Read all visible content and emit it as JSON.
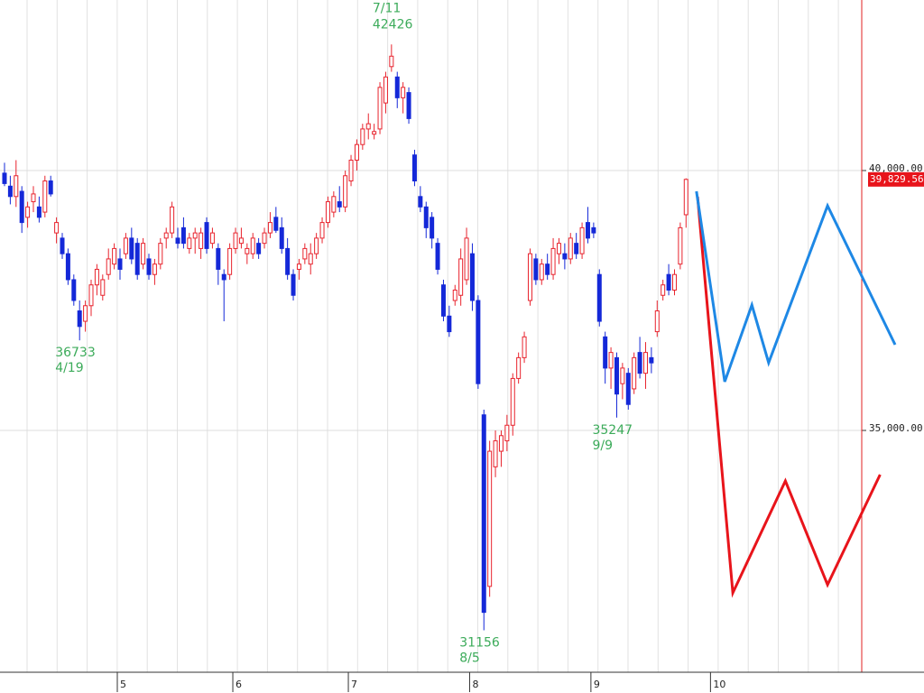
{
  "chart_data": {
    "type": "candlestick",
    "up_color": "#e8232d",
    "down_color": "#1428d8",
    "ohlc": [
      [
        39950,
        40150,
        39700,
        39750
      ],
      [
        39700,
        39900,
        39350,
        39500
      ],
      [
        39500,
        40200,
        39300,
        39900
      ],
      [
        39600,
        39700,
        38800,
        39000
      ],
      [
        39100,
        39400,
        38900,
        39300
      ],
      [
        39400,
        39700,
        39200,
        39550
      ],
      [
        39300,
        39500,
        39000,
        39100
      ],
      [
        39200,
        39900,
        39100,
        39800
      ],
      [
        39800,
        39900,
        39500,
        39550
      ],
      [
        38800,
        39100,
        38600,
        39000
      ],
      [
        38700,
        38800,
        38300,
        38400
      ],
      [
        38400,
        38500,
        37800,
        37900
      ],
      [
        37900,
        38000,
        37400,
        37500
      ],
      [
        37300,
        37500,
        36733,
        37000
      ],
      [
        37100,
        37500,
        36900,
        37400
      ],
      [
        37400,
        37900,
        37200,
        37800
      ],
      [
        37800,
        38200,
        37600,
        38100
      ],
      [
        37600,
        38000,
        37500,
        37900
      ],
      [
        38000,
        38500,
        37900,
        38300
      ],
      [
        38200,
        38600,
        38100,
        38500
      ],
      [
        38300,
        38500,
        37900,
        38100
      ],
      [
        38400,
        38800,
        38300,
        38700
      ],
      [
        38700,
        38900,
        38200,
        38300
      ],
      [
        38600,
        38700,
        37900,
        38000
      ],
      [
        38200,
        38700,
        38100,
        38600
      ],
      [
        38300,
        38400,
        37900,
        38000
      ],
      [
        38000,
        38300,
        37800,
        38200
      ],
      [
        38200,
        38700,
        38100,
        38600
      ],
      [
        38700,
        38900,
        38500,
        38800
      ],
      [
        38800,
        39400,
        38700,
        39300
      ],
      [
        38700,
        38900,
        38500,
        38600
      ],
      [
        38900,
        39100,
        38500,
        38600
      ],
      [
        38500,
        38800,
        38400,
        38700
      ],
      [
        38700,
        38900,
        38400,
        38800
      ],
      [
        38500,
        38900,
        38300,
        38800
      ],
      [
        39000,
        39100,
        38400,
        38500
      ],
      [
        38600,
        38900,
        38500,
        38800
      ],
      [
        38500,
        38600,
        37800,
        38100
      ],
      [
        38000,
        38100,
        37100,
        37900
      ],
      [
        38000,
        38600,
        37900,
        38500
      ],
      [
        38500,
        38900,
        38400,
        38800
      ],
      [
        38600,
        38900,
        38500,
        38700
      ],
      [
        38400,
        38600,
        38200,
        38500
      ],
      [
        38400,
        38800,
        38300,
        38700
      ],
      [
        38600,
        38700,
        38300,
        38400
      ],
      [
        38600,
        38900,
        38500,
        38800
      ],
      [
        38800,
        39200,
        38700,
        39000
      ],
      [
        39100,
        39300,
        38800,
        38850
      ],
      [
        38900,
        39100,
        38400,
        38500
      ],
      [
        38500,
        38700,
        37900,
        38000
      ],
      [
        38000,
        38100,
        37500,
        37600
      ],
      [
        38100,
        38300,
        37900,
        38200
      ],
      [
        38300,
        38600,
        38200,
        38500
      ],
      [
        38200,
        38600,
        38000,
        38400
      ],
      [
        38400,
        38800,
        38300,
        38700
      ],
      [
        38700,
        39100,
        38600,
        39000
      ],
      [
        39000,
        39500,
        38900,
        39400
      ],
      [
        39200,
        39600,
        39100,
        39500
      ],
      [
        39400,
        39700,
        39200,
        39300
      ],
      [
        39300,
        40000,
        39200,
        39900
      ],
      [
        39800,
        40300,
        39700,
        40200
      ],
      [
        40200,
        40600,
        40000,
        40500
      ],
      [
        40500,
        40900,
        40400,
        40800
      ],
      [
        40800,
        41100,
        40600,
        40900
      ],
      [
        40700,
        40900,
        40600,
        40750
      ],
      [
        40800,
        41700,
        40700,
        41600
      ],
      [
        41300,
        41900,
        41100,
        41800
      ],
      [
        42000,
        42426,
        41900,
        42200
      ],
      [
        41800,
        41900,
        41200,
        41400
      ],
      [
        41400,
        41700,
        41100,
        41600
      ],
      [
        41500,
        41600,
        40900,
        41000
      ],
      [
        40300,
        40400,
        39700,
        39800
      ],
      [
        39500,
        39700,
        39200,
        39300
      ],
      [
        39300,
        39400,
        38700,
        38900
      ],
      [
        39100,
        39200,
        38500,
        38700
      ],
      [
        38600,
        38700,
        38000,
        38100
      ],
      [
        37800,
        37900,
        37100,
        37200
      ],
      [
        37200,
        37400,
        36800,
        36900
      ],
      [
        37500,
        37800,
        37400,
        37700
      ],
      [
        37600,
        38500,
        37400,
        38300
      ],
      [
        37900,
        38900,
        37800,
        38700
      ],
      [
        38400,
        38600,
        37300,
        37500
      ],
      [
        37500,
        37600,
        35800,
        35900
      ],
      [
        35300,
        35400,
        31156,
        31500
      ],
      [
        32000,
        34800,
        31800,
        34600
      ],
      [
        34300,
        35000,
        34100,
        34800
      ],
      [
        34600,
        35000,
        34300,
        34900
      ],
      [
        34800,
        35300,
        34600,
        35100
      ],
      [
        35100,
        36100,
        34900,
        36000
      ],
      [
        36000,
        36500,
        35900,
        36400
      ],
      [
        36400,
        36900,
        36300,
        36800
      ],
      [
        37500,
        38500,
        37400,
        38400
      ],
      [
        38300,
        38400,
        37800,
        37900
      ],
      [
        37900,
        38300,
        37800,
        38200
      ],
      [
        38200,
        38400,
        37900,
        38000
      ],
      [
        38000,
        38700,
        37900,
        38500
      ],
      [
        38400,
        38700,
        38200,
        38600
      ],
      [
        38400,
        38600,
        38100,
        38300
      ],
      [
        38300,
        38800,
        38200,
        38700
      ],
      [
        38600,
        38800,
        38300,
        38400
      ],
      [
        38400,
        39000,
        38300,
        38900
      ],
      [
        39000,
        39300,
        38600,
        38700
      ],
      [
        38900,
        39000,
        38700,
        38800
      ],
      [
        38000,
        38100,
        37000,
        37100
      ],
      [
        36800,
        36900,
        35900,
        36200
      ],
      [
        36200,
        36600,
        35800,
        36500
      ],
      [
        36400,
        36500,
        35247,
        35700
      ],
      [
        35900,
        36300,
        35600,
        36200
      ],
      [
        36100,
        36200,
        35400,
        35500
      ],
      [
        35800,
        36500,
        35700,
        36400
      ],
      [
        36500,
        36800,
        36000,
        36100
      ],
      [
        36100,
        36700,
        35800,
        36500
      ],
      [
        36400,
        36600,
        36100,
        36300
      ],
      [
        36900,
        37500,
        36800,
        37300
      ],
      [
        37600,
        37900,
        37500,
        37800
      ],
      [
        38000,
        38200,
        37600,
        37700
      ],
      [
        37700,
        38100,
        37600,
        38000
      ],
      [
        38200,
        39000,
        38100,
        38900
      ],
      [
        39150,
        39850,
        38900,
        39829.56
      ]
    ],
    "lines": [
      {
        "color": "#e8141b",
        "x": [
          120,
          126.1,
          135.2,
          142.5,
          151.6
        ],
        "values": [
          39497,
          31876,
          34028,
          32032,
          34150
        ]
      },
      {
        "color": "#1e88e5",
        "x": [
          119.8,
          124.7,
          129.4,
          132.3,
          142.5,
          154.2
        ],
        "values": [
          39601,
          35938,
          37413,
          36302,
          39323,
          36650
        ]
      }
    ],
    "annotations": [
      {
        "kind": "high",
        "date": "7/11",
        "value": 42426
      },
      {
        "kind": "low",
        "date": "4/19",
        "value": 36733
      },
      {
        "kind": "low",
        "date": "8/5",
        "value": 31156
      },
      {
        "kind": "low",
        "date": "9/9",
        "value": 35247
      }
    ],
    "last_price": {
      "value": 39829.56,
      "label": "39,829.56"
    },
    "xlim": [
      -0.78,
      159.2
    ],
    "xticks": [
      {
        "value": 20,
        "label": "5"
      },
      {
        "value": 40,
        "label": "6"
      },
      {
        "value": 60,
        "label": "7"
      },
      {
        "value": 81,
        "label": "8"
      },
      {
        "value": 102,
        "label": "9"
      },
      {
        "value": 122.7,
        "label": "10"
      }
    ],
    "ylim": [
      30348,
      43281
    ],
    "yticks": [
      {
        "value": 35000,
        "label": "35,000.00"
      },
      {
        "value": 40000,
        "label": "40,000.00"
      }
    ],
    "grid": true
  }
}
